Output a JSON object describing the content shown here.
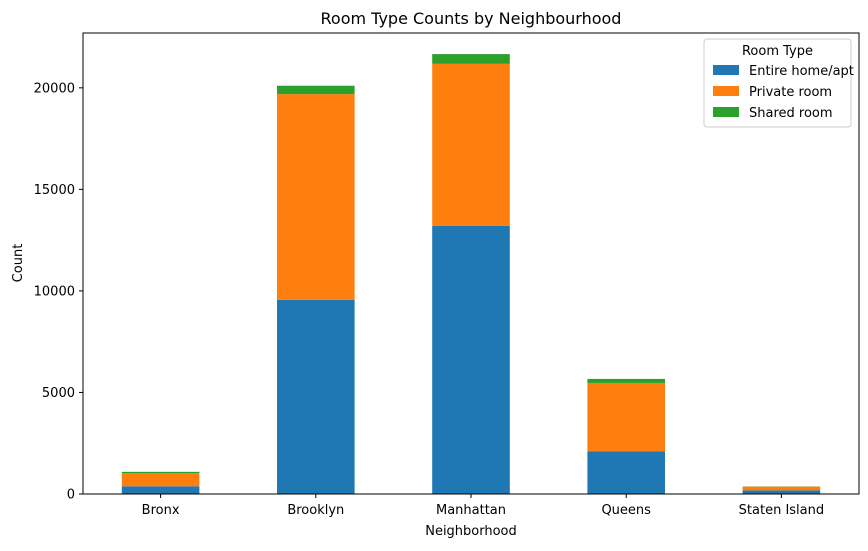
{
  "chart_data": {
    "type": "bar",
    "stacked": true,
    "title": "Room Type Counts by Neighbourhood",
    "xlabel": "Neighborhood",
    "ylabel": "Count",
    "categories": [
      "Bronx",
      "Brooklyn",
      "Manhattan",
      "Queens",
      "Staten Island"
    ],
    "ylim": [
      0,
      22700
    ],
    "yticks": [
      0,
      5000,
      10000,
      15000,
      20000
    ],
    "grid": false,
    "legend": {
      "title": "Room Type",
      "placement": "top-right"
    },
    "series": [
      {
        "name": "Entire home/apt",
        "color": "#1f77b4",
        "values": [
          379,
          9559,
          13199,
          2096,
          176
        ]
      },
      {
        "name": "Private room",
        "color": "#ff7f0e",
        "values": [
          652,
          10132,
          7982,
          3372,
          188
        ]
      },
      {
        "name": "Shared room",
        "color": "#2ca02c",
        "values": [
          60,
          413,
          480,
          198,
          9
        ]
      }
    ]
  }
}
